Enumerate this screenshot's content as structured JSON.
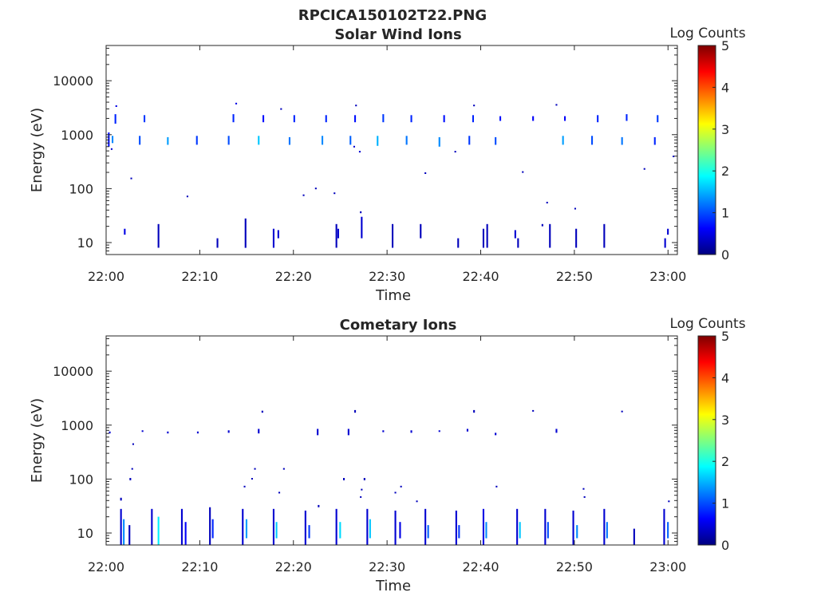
{
  "figure_title": "RPCICA150102T22.PNG",
  "colormap_stops": [
    "#00007f",
    "#0000ff",
    "#007fff",
    "#00ffff",
    "#7fff7f",
    "#ffff00",
    "#ff7f00",
    "#ff0000",
    "#7f0000"
  ],
  "chart_data": [
    {
      "type": "heatmap",
      "title": "Solar Wind Ions",
      "xlabel": "Time",
      "ylabel": "Energy (eV)",
      "y_scale": "log",
      "xlim": [
        0,
        61
      ],
      "ylim": [
        6,
        45000
      ],
      "x_tick_minutes": [
        0,
        10,
        20,
        30,
        40,
        50,
        60
      ],
      "x_tick_labels": [
        "22:00",
        "22:10",
        "22:20",
        "22:30",
        "22:40",
        "22:50",
        "23:00"
      ],
      "y_tick_values": [
        10,
        100,
        1000,
        10000
      ],
      "y_tick_labels": [
        "10",
        "100",
        "1000",
        "10000"
      ],
      "colorbar": {
        "label": "Log Counts",
        "min": 0,
        "max": 5,
        "ticks": [
          "0",
          "1",
          "2",
          "3",
          "4",
          "5"
        ]
      },
      "cells": [
        [
          0.2,
          600,
          1100,
          0.7
        ],
        [
          0.6,
          700,
          950,
          1.3
        ],
        [
          0.9,
          1600,
          2400,
          0.8
        ],
        [
          1.0,
          3400,
          3500,
          0.5
        ],
        [
          3.5,
          650,
          950,
          1.0
        ],
        [
          4.0,
          1700,
          2300,
          0.9
        ],
        [
          6.5,
          650,
          900,
          1.4
        ],
        [
          9.6,
          650,
          950,
          0.9
        ],
        [
          13.0,
          650,
          950,
          1.0
        ],
        [
          13.5,
          1700,
          2400,
          0.8
        ],
        [
          13.8,
          3800,
          3900,
          0.5
        ],
        [
          16.2,
          650,
          950,
          1.6
        ],
        [
          16.7,
          1700,
          2300,
          0.7
        ],
        [
          19.5,
          650,
          900,
          1.2
        ],
        [
          20.0,
          1700,
          2300,
          0.8
        ],
        [
          23.0,
          650,
          950,
          1.3
        ],
        [
          23.4,
          1700,
          2300,
          0.8
        ],
        [
          26.0,
          650,
          950,
          1.1
        ],
        [
          26.5,
          1700,
          2300,
          0.7
        ],
        [
          28.9,
          620,
          950,
          1.5
        ],
        [
          29.5,
          1700,
          2400,
          0.9
        ],
        [
          32.0,
          650,
          950,
          1.2
        ],
        [
          32.5,
          1700,
          2300,
          0.8
        ],
        [
          35.5,
          600,
          900,
          1.3
        ],
        [
          36.0,
          1700,
          2300,
          0.7
        ],
        [
          38.7,
          650,
          950,
          0.9
        ],
        [
          39.1,
          1700,
          2300,
          0.8
        ],
        [
          41.5,
          650,
          900,
          1.0
        ],
        [
          42.0,
          1800,
          2200,
          0.7
        ],
        [
          45.5,
          1800,
          2200,
          0.6
        ],
        [
          48.7,
          650,
          950,
          1.4
        ],
        [
          48.9,
          1800,
          2200,
          0.6
        ],
        [
          51.8,
          650,
          950,
          1.0
        ],
        [
          52.4,
          1700,
          2300,
          0.8
        ],
        [
          55.0,
          650,
          900,
          1.2
        ],
        [
          55.5,
          1800,
          2400,
          0.8
        ],
        [
          58.5,
          650,
          900,
          0.8
        ],
        [
          58.8,
          1700,
          2300,
          0.9
        ],
        [
          1.9,
          14,
          18,
          0.5
        ],
        [
          5.5,
          8,
          22,
          0.3
        ],
        [
          11.8,
          8,
          12,
          0.3
        ],
        [
          14.8,
          8,
          28,
          0.3
        ],
        [
          17.8,
          8,
          18,
          0.4
        ],
        [
          18.3,
          12,
          17,
          0.4
        ],
        [
          24.5,
          8,
          22,
          0.3
        ],
        [
          24.7,
          12,
          18,
          0.4
        ],
        [
          27.2,
          12,
          30,
          0.4
        ],
        [
          30.5,
          8,
          22,
          0.3
        ],
        [
          33.5,
          12,
          22,
          0.3
        ],
        [
          37.5,
          8,
          12,
          0.3
        ],
        [
          40.2,
          8,
          18,
          0.3
        ],
        [
          40.6,
          8,
          22,
          0.3
        ],
        [
          43.6,
          12,
          17,
          0.4
        ],
        [
          43.9,
          8,
          12,
          0.3
        ],
        [
          46.5,
          20,
          22,
          0.3
        ],
        [
          47.3,
          8,
          22,
          0.3
        ],
        [
          50.1,
          8,
          18,
          0.3
        ],
        [
          53.1,
          8,
          22,
          0.3
        ],
        [
          59.6,
          8,
          12,
          0.4
        ],
        [
          59.9,
          14,
          18,
          0.4
        ],
        [
          2.6,
          150,
          160,
          0.3
        ],
        [
          8.6,
          70,
          74,
          0.3
        ],
        [
          21.0,
          75,
          78,
          0.3
        ],
        [
          22.3,
          100,
          104,
          0.3
        ],
        [
          24.3,
          80,
          85,
          0.3
        ],
        [
          27.1,
          35,
          38,
          0.3
        ],
        [
          27.0,
          480,
          500,
          0.4
        ],
        [
          34.0,
          190,
          200,
          0.3
        ],
        [
          37.2,
          480,
          500,
          0.3
        ],
        [
          44.4,
          200,
          210,
          0.3
        ],
        [
          47.0,
          55,
          57,
          0.3
        ],
        [
          50.0,
          42,
          44,
          0.3
        ],
        [
          57.4,
          230,
          240,
          0.3
        ],
        [
          60.5,
          390,
          410,
          0.3
        ],
        [
          26.6,
          3500,
          3600,
          0.3
        ],
        [
          39.2,
          3500,
          3600,
          0.3
        ],
        [
          48.0,
          3600,
          3700,
          0.3
        ],
        [
          18.6,
          3000,
          3100,
          0.3
        ],
        [
          26.4,
          600,
          620,
          0.4
        ],
        [
          0.5,
          550,
          560,
          0.4
        ]
      ]
    },
    {
      "type": "heatmap",
      "title": "Cometary Ions",
      "xlabel": "Time",
      "ylabel": "Energy (eV)",
      "y_scale": "log",
      "xlim": [
        0,
        61
      ],
      "ylim": [
        6,
        45000
      ],
      "x_tick_minutes": [
        0,
        10,
        20,
        30,
        40,
        50,
        60
      ],
      "x_tick_labels": [
        "22:00",
        "22:10",
        "22:20",
        "22:30",
        "22:40",
        "22:50",
        "23:00"
      ],
      "y_tick_values": [
        10,
        100,
        1000,
        10000
      ],
      "y_tick_labels": [
        "10",
        "100",
        "1000",
        "10000"
      ],
      "colorbar": {
        "label": "Log Counts",
        "min": 0,
        "max": 5,
        "ticks": [
          "0",
          "1",
          "2",
          "3",
          "4",
          "5"
        ]
      },
      "cells": [
        [
          1.5,
          6,
          28,
          0.4
        ],
        [
          1.8,
          6,
          18,
          1.3
        ],
        [
          2.4,
          6,
          14,
          0.3
        ],
        [
          4.8,
          6,
          28,
          0.4
        ],
        [
          5.5,
          6,
          20,
          1.8
        ],
        [
          8.0,
          6,
          28,
          0.4
        ],
        [
          8.4,
          6,
          16,
          0.6
        ],
        [
          11.0,
          6,
          30,
          0.3
        ],
        [
          11.3,
          8,
          18,
          0.8
        ],
        [
          14.5,
          6,
          28,
          0.4
        ],
        [
          14.9,
          8,
          18,
          1.4
        ],
        [
          17.8,
          6,
          28,
          0.4
        ],
        [
          18.1,
          8,
          16,
          1.6
        ],
        [
          21.2,
          6,
          26,
          0.4
        ],
        [
          21.6,
          8,
          14,
          0.9
        ],
        [
          24.5,
          6,
          28,
          0.4
        ],
        [
          24.9,
          8,
          16,
          1.7
        ],
        [
          27.8,
          6,
          28,
          0.4
        ],
        [
          28.1,
          8,
          18,
          1.6
        ],
        [
          30.8,
          6,
          26,
          0.4
        ],
        [
          31.3,
          8,
          16,
          0.5
        ],
        [
          34.0,
          6,
          28,
          0.4
        ],
        [
          34.3,
          8,
          14,
          1.1
        ],
        [
          37.3,
          6,
          26,
          0.4
        ],
        [
          37.6,
          8,
          14,
          0.9
        ],
        [
          40.2,
          6,
          28,
          0.5
        ],
        [
          40.5,
          8,
          16,
          1.3
        ],
        [
          43.8,
          6,
          28,
          0.4
        ],
        [
          44.1,
          8,
          16,
          1.6
        ],
        [
          46.8,
          6,
          28,
          0.4
        ],
        [
          47.1,
          8,
          16,
          1.0
        ],
        [
          49.8,
          6,
          26,
          0.4
        ],
        [
          50.2,
          8,
          14,
          1.3
        ],
        [
          53.1,
          6,
          28,
          0.4
        ],
        [
          53.4,
          8,
          16,
          1.2
        ],
        [
          56.3,
          6,
          12,
          0.3
        ],
        [
          59.5,
          6,
          28,
          0.4
        ],
        [
          59.9,
          8,
          16,
          1.1
        ],
        [
          0.3,
          700,
          760,
          0.4
        ],
        [
          2.8,
          430,
          460,
          0.3
        ],
        [
          3.8,
          760,
          800,
          0.4
        ],
        [
          6.5,
          700,
          760,
          0.4
        ],
        [
          9.7,
          700,
          760,
          0.4
        ],
        [
          13.0,
          720,
          800,
          0.4
        ],
        [
          16.2,
          700,
          850,
          0.4
        ],
        [
          16.6,
          1700,
          1850,
          0.3
        ],
        [
          22.5,
          650,
          850,
          0.4
        ],
        [
          25.8,
          650,
          850,
          0.4
        ],
        [
          26.5,
          1700,
          1900,
          0.3
        ],
        [
          29.5,
          740,
          800,
          0.4
        ],
        [
          32.5,
          720,
          800,
          0.4
        ],
        [
          35.5,
          760,
          800,
          0.4
        ],
        [
          38.5,
          760,
          850,
          0.4
        ],
        [
          39.2,
          1700,
          1900,
          0.3
        ],
        [
          41.5,
          650,
          720,
          0.4
        ],
        [
          45.5,
          1800,
          1900,
          0.3
        ],
        [
          48.0,
          720,
          850,
          0.4
        ],
        [
          55.0,
          1750,
          1850,
          0.3
        ],
        [
          1.5,
          40,
          45,
          0.3
        ],
        [
          2.5,
          95,
          105,
          0.3
        ],
        [
          2.7,
          150,
          160,
          0.3
        ],
        [
          14.7,
          70,
          75,
          0.3
        ],
        [
          15.5,
          100,
          105,
          0.3
        ],
        [
          15.8,
          150,
          160,
          0.3
        ],
        [
          18.4,
          55,
          58,
          0.3
        ],
        [
          18.9,
          150,
          160,
          0.3
        ],
        [
          22.6,
          30,
          33,
          0.3
        ],
        [
          25.3,
          95,
          105,
          0.3
        ],
        [
          27.5,
          95,
          105,
          0.3
        ],
        [
          27.1,
          45,
          48,
          0.3
        ],
        [
          27.2,
          62,
          66,
          0.3
        ],
        [
          30.8,
          55,
          58,
          0.3
        ],
        [
          31.4,
          70,
          75,
          0.3
        ],
        [
          33.1,
          38,
          40,
          0.3
        ],
        [
          41.6,
          70,
          75,
          0.3
        ],
        [
          50.9,
          65,
          68,
          0.3
        ],
        [
          51.0,
          45,
          48,
          0.3
        ],
        [
          60.0,
          38,
          40,
          0.3
        ]
      ]
    }
  ]
}
